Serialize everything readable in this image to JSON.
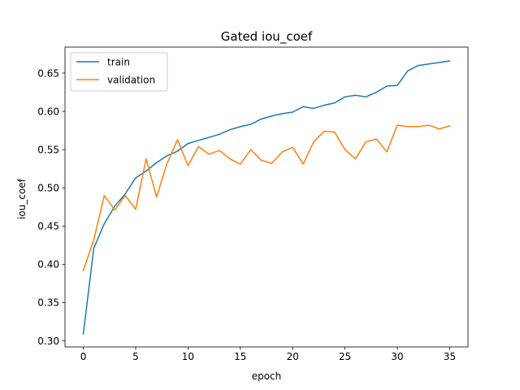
{
  "chart_data": {
    "type": "line",
    "title": "Gated iou_coef",
    "xlabel": "epoch",
    "ylabel": "iou_coef",
    "xlim": [
      -1.75,
      36.75
    ],
    "ylim": [
      0.292,
      0.684
    ],
    "xticks": [
      0,
      5,
      10,
      15,
      20,
      25,
      30,
      35
    ],
    "xtick_labels": [
      "0",
      "5",
      "10",
      "15",
      "20",
      "25",
      "30",
      "35"
    ],
    "yticks": [
      0.3,
      0.35,
      0.4,
      0.45,
      0.5,
      0.55,
      0.6,
      0.65
    ],
    "ytick_labels": [
      "0.30",
      "0.35",
      "0.40",
      "0.45",
      "0.50",
      "0.55",
      "0.60",
      "0.65"
    ],
    "grid": false,
    "legend_position": "upper left",
    "x": [
      0,
      1,
      2,
      3,
      4,
      5,
      6,
      7,
      8,
      9,
      10,
      11,
      12,
      13,
      14,
      15,
      16,
      17,
      18,
      19,
      20,
      21,
      22,
      23,
      24,
      25,
      26,
      27,
      28,
      29,
      30,
      31,
      32,
      33,
      34,
      35
    ],
    "series": [
      {
        "name": "train",
        "color": "#1f77b4",
        "values": [
          0.309,
          0.421,
          0.453,
          0.476,
          0.492,
          0.513,
          0.522,
          0.533,
          0.542,
          0.548,
          0.558,
          0.562,
          0.566,
          0.57,
          0.576,
          0.58,
          0.583,
          0.59,
          0.594,
          0.597,
          0.599,
          0.606,
          0.604,
          0.608,
          0.611,
          0.619,
          0.621,
          0.619,
          0.625,
          0.633,
          0.634,
          0.653,
          0.66,
          0.662,
          0.664,
          0.666
        ]
      },
      {
        "name": "validation",
        "color": "#ff7f0e",
        "values": [
          0.392,
          0.432,
          0.49,
          0.471,
          0.49,
          0.472,
          0.538,
          0.488,
          0.532,
          0.563,
          0.529,
          0.554,
          0.544,
          0.549,
          0.538,
          0.531,
          0.55,
          0.536,
          0.532,
          0.547,
          0.553,
          0.531,
          0.56,
          0.574,
          0.573,
          0.55,
          0.538,
          0.56,
          0.564,
          0.547,
          0.582,
          0.58,
          0.58,
          0.582,
          0.577,
          0.581
        ]
      }
    ]
  }
}
